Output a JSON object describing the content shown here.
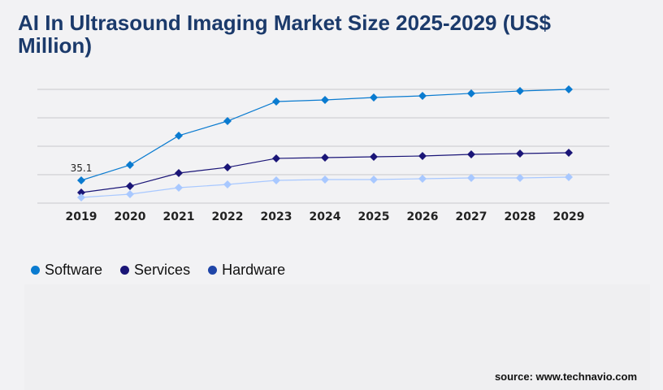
{
  "title": "AI In Ultrasound Imaging Market Size 2025-2029 (US$ Million)",
  "source": "source: www.technavio.com",
  "chart_data": {
    "type": "line",
    "title": "AI In Ultrasound Imaging Market Size 2025-2029 (US$ Million)",
    "categories": [
      "2019",
      "2020",
      "2021",
      "2022",
      "2023",
      "2024",
      "2025",
      "2026",
      "2027",
      "2028",
      "2029"
    ],
    "ylim": [
      0,
      175.5
    ],
    "grid": true,
    "legend": "bottom-left",
    "data_labels": [
      {
        "series": "Software",
        "category": "2019",
        "text": "35.1"
      }
    ],
    "series": [
      {
        "name": "Software",
        "color": "#0a7bd0",
        "marker_color": "#0a7bd0",
        "values": [
          35.1,
          58.9,
          104.1,
          126.6,
          156.7,
          159.2,
          163.0,
          165.5,
          169.3,
          173.0,
          175.5
        ]
      },
      {
        "name": "Services",
        "color": "#1a1577",
        "marker_color": "#1a1577",
        "values": [
          16.3,
          26.3,
          46.4,
          55.2,
          69.0,
          70.2,
          71.5,
          72.7,
          75.2,
          76.5,
          77.7
        ]
      },
      {
        "name": "Hardware",
        "color": "#a8c8ff",
        "marker_color": "#1f45a8",
        "values": [
          8.8,
          13.8,
          23.8,
          28.8,
          35.1,
          36.4,
          36.4,
          37.6,
          38.9,
          38.9,
          40.1
        ]
      }
    ]
  }
}
